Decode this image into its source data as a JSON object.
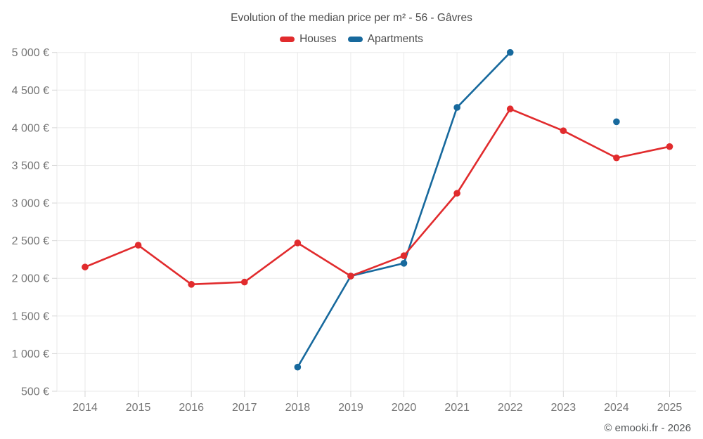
{
  "footer": {
    "credit": "© emooki.fr - 2026"
  },
  "chart_data": {
    "type": "line",
    "title": "Evolution of the median price per m² - 56 - Gâvres",
    "xlabel": "",
    "ylabel": "",
    "categories": [
      "2014",
      "2015",
      "2016",
      "2017",
      "2018",
      "2019",
      "2020",
      "2021",
      "2022",
      "2023",
      "2024",
      "2025"
    ],
    "series": [
      {
        "name": "Houses",
        "color": "#e12b2d",
        "values": [
          2150,
          2440,
          1920,
          1950,
          2470,
          2030,
          2300,
          3130,
          4250,
          3960,
          3600,
          3750
        ]
      },
      {
        "name": "Apartments",
        "color": "#17699d",
        "values": [
          null,
          null,
          null,
          null,
          820,
          2030,
          2200,
          4270,
          5000,
          null,
          4080,
          null
        ]
      }
    ],
    "ylim": [
      500,
      5000
    ],
    "ytick_step": 500,
    "ytick_labels": [
      "500 €",
      "1 000 €",
      "1 500 €",
      "2 000 €",
      "2 500 €",
      "3 000 €",
      "3 500 €",
      "4 000 €",
      "4 500 €",
      "5 000 €"
    ],
    "grid": true,
    "legend_position": "top",
    "marker": "circle",
    "grid_color": "#eaeaea",
    "tick_color": "#d6d6d6",
    "axis_text_color": "#757575"
  }
}
